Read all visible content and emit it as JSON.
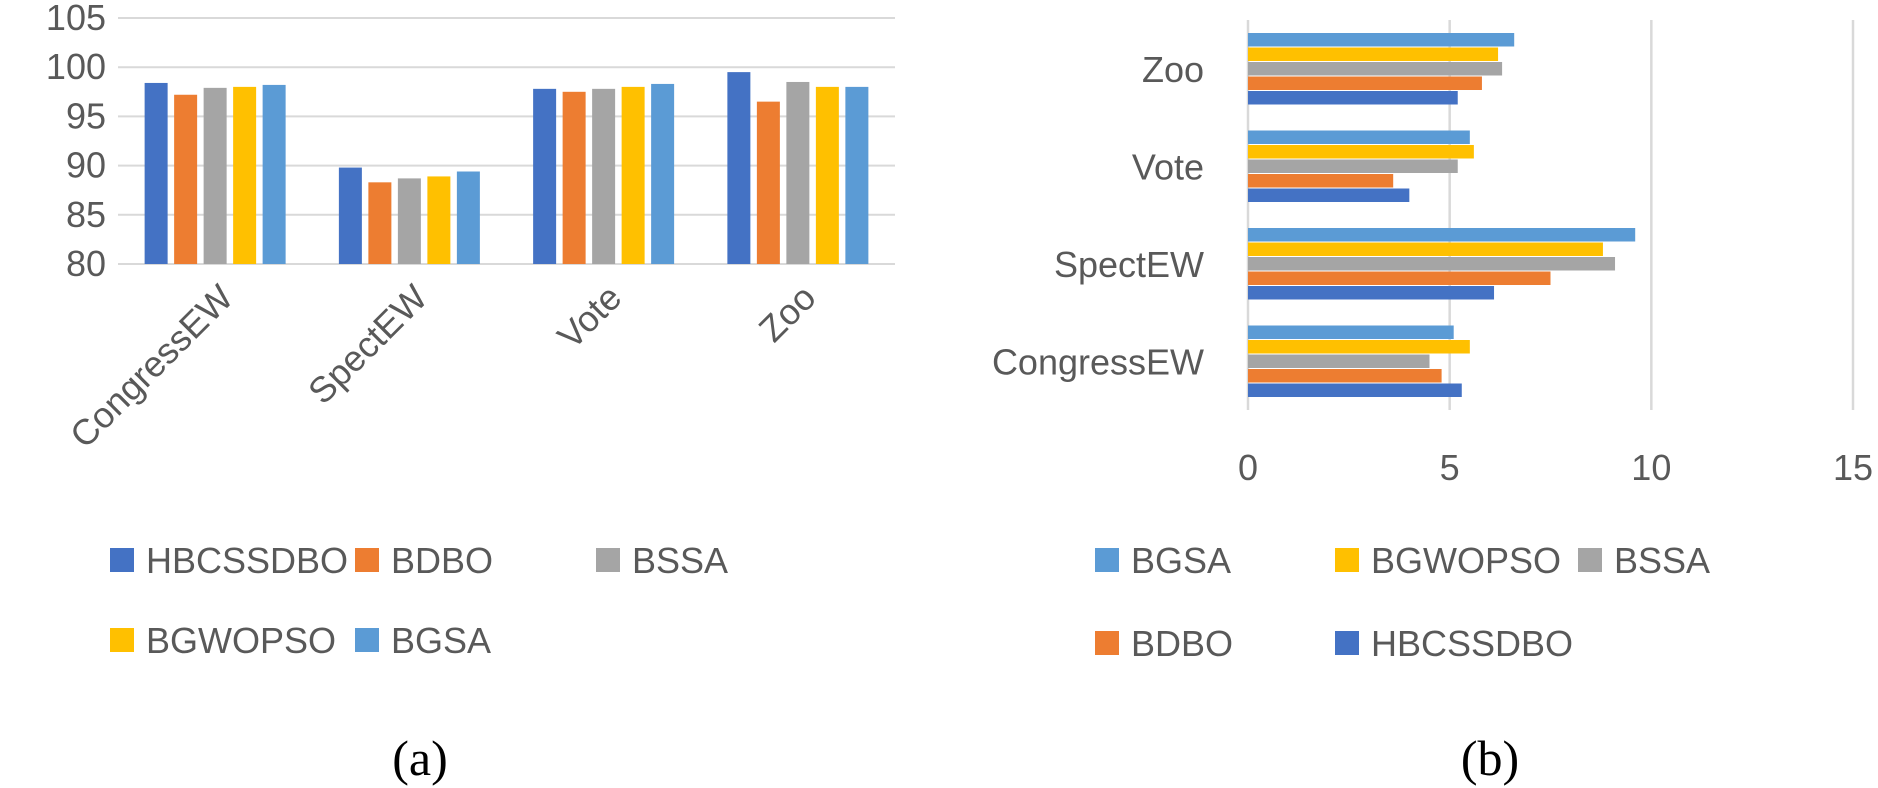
{
  "chart_data": [
    {
      "type": "bar",
      "orientation": "vertical",
      "categories": [
        "CongressEW",
        "SpectEW",
        "Vote",
        "Zoo"
      ],
      "series": [
        {
          "name": "HBCSSDBO",
          "color": "#4472C4",
          "values": [
            98.4,
            89.8,
            97.8,
            99.5
          ]
        },
        {
          "name": "BDBO",
          "color": "#ED7D31",
          "values": [
            97.2,
            88.3,
            97.5,
            96.5
          ]
        },
        {
          "name": "BSSA",
          "color": "#A5A5A5",
          "values": [
            97.9,
            88.7,
            97.8,
            98.5
          ]
        },
        {
          "name": "BGWOPSO",
          "color": "#FFC000",
          "values": [
            98.0,
            88.9,
            98.0,
            98.0
          ]
        },
        {
          "name": "BGSA",
          "color": "#5B9BD5",
          "values": [
            98.2,
            89.4,
            98.3,
            98.0
          ]
        }
      ],
      "yticks": [
        80,
        85,
        90,
        95,
        100,
        105
      ],
      "ylim": [
        80,
        105
      ],
      "legend_order": [
        "HBCSSDBO",
        "BDBO",
        "BSSA",
        "BGWOPSO",
        "BGSA"
      ],
      "legend_position": "bottom",
      "title": "",
      "xlabel": "",
      "ylabel": ""
    },
    {
      "type": "bar",
      "orientation": "horizontal",
      "categories": [
        "CongressEW",
        "SpectEW",
        "Vote",
        "Zoo"
      ],
      "series": [
        {
          "name": "HBCSSDBO",
          "color": "#4472C4",
          "values": [
            5.3,
            6.1,
            4.0,
            5.2
          ]
        },
        {
          "name": "BDBO",
          "color": "#ED7D31",
          "values": [
            4.8,
            7.5,
            3.6,
            5.8
          ]
        },
        {
          "name": "BSSA",
          "color": "#A5A5A5",
          "values": [
            4.5,
            9.1,
            5.2,
            6.3
          ]
        },
        {
          "name": "BGWOPSO",
          "color": "#FFC000",
          "values": [
            5.5,
            8.8,
            5.6,
            6.2
          ]
        },
        {
          "name": "BGSA",
          "color": "#5B9BD5",
          "values": [
            5.1,
            9.6,
            5.5,
            6.6
          ]
        }
      ],
      "xticks": [
        0,
        5,
        10,
        15
      ],
      "xlim": [
        0,
        15
      ],
      "legend_order": [
        "BGSA",
        "BGWOPSO",
        "BSSA",
        "BDBO",
        "HBCSSDBO"
      ],
      "legend_position": "bottom",
      "title": "",
      "xlabel": "",
      "ylabel": ""
    }
  ],
  "captions": [
    "(a)",
    "(b)"
  ]
}
